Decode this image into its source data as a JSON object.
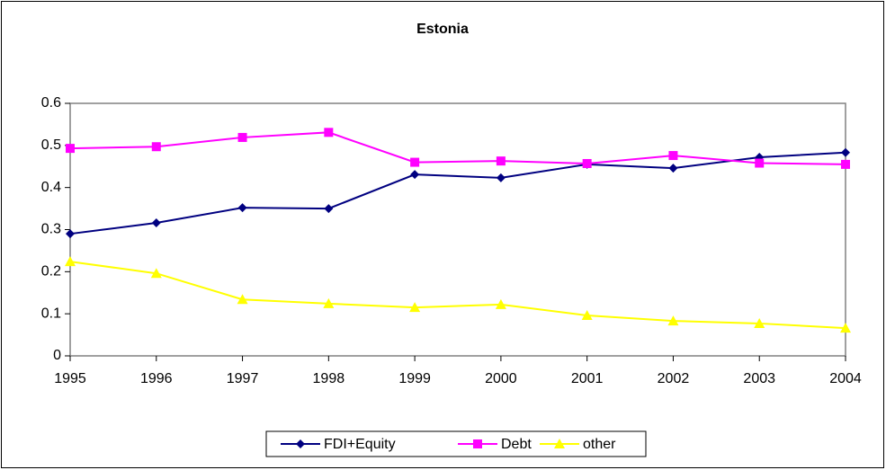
{
  "chart_data": {
    "type": "line",
    "title": "Estonia",
    "x": [
      1995,
      1996,
      1997,
      1998,
      1999,
      2000,
      2001,
      2002,
      2003,
      2004
    ],
    "xlim": [
      1995,
      2004
    ],
    "xticks": [
      1995,
      1996,
      1997,
      1998,
      1999,
      2000,
      2001,
      2002,
      2003,
      2004
    ],
    "ylim": [
      0,
      0.6
    ],
    "yticks": [
      0,
      0.1,
      0.2,
      0.3,
      0.4,
      0.5,
      0.6
    ],
    "legend": "bottom",
    "series": [
      {
        "name": "FDI+Equity",
        "color": "#000080",
        "marker": "diamond",
        "values": [
          0.29,
          0.316,
          0.352,
          0.35,
          0.431,
          0.423,
          0.455,
          0.446,
          0.472,
          0.483
        ]
      },
      {
        "name": "Debt",
        "color": "#ff00ff",
        "marker": "square",
        "values": [
          0.493,
          0.497,
          0.519,
          0.531,
          0.46,
          0.463,
          0.457,
          0.476,
          0.458,
          0.455
        ]
      },
      {
        "name": "other",
        "color": "#ffff00",
        "marker": "triangle",
        "values": [
          0.224,
          0.196,
          0.134,
          0.124,
          0.115,
          0.122,
          0.096,
          0.083,
          0.077,
          0.066
        ]
      }
    ]
  }
}
